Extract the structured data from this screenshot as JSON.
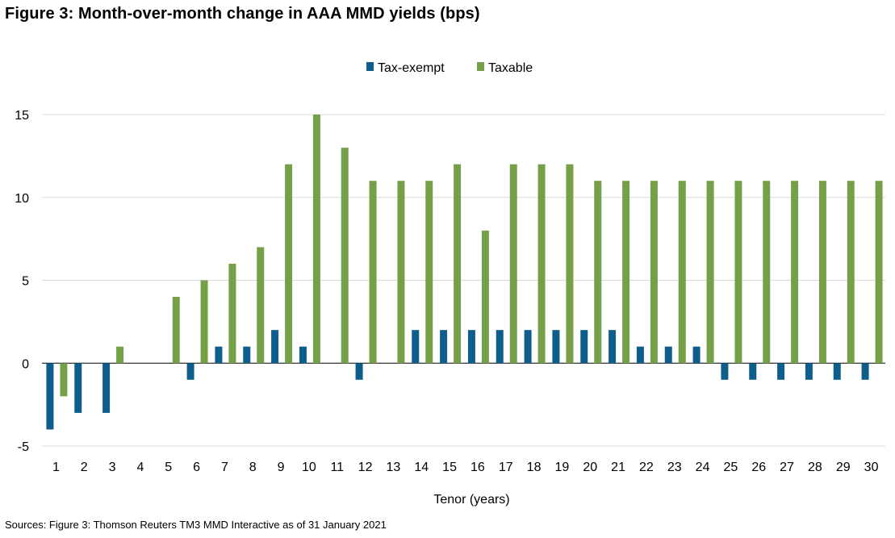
{
  "title": "Figure 3: Month-over-month change in AAA MMD yields (bps)",
  "source": "Sources: Figure 3: Thomson Reuters TM3 MMD Interactive as of 31 January 2021",
  "chart_data": {
    "type": "bar",
    "xlabel": "Tenor (years)",
    "ylabel": "",
    "ylim": [
      -5,
      15
    ],
    "yticks": [
      -5,
      0,
      5,
      10,
      15
    ],
    "grid": true,
    "legend_position": "top-center",
    "categories": [
      "1",
      "2",
      "3",
      "4",
      "5",
      "6",
      "7",
      "8",
      "9",
      "10",
      "11",
      "12",
      "13",
      "14",
      "15",
      "16",
      "17",
      "18",
      "19",
      "20",
      "21",
      "22",
      "23",
      "24",
      "25",
      "26",
      "27",
      "28",
      "29",
      "30"
    ],
    "series": [
      {
        "name": "Tax-exempt",
        "color": "#0E5E8C",
        "values": [
          -4,
          -3,
          -3,
          0,
          0,
          -1,
          1,
          1,
          2,
          1,
          0,
          -1,
          0,
          2,
          2,
          2,
          2,
          2,
          2,
          2,
          2,
          1,
          1,
          1,
          -1,
          -1,
          -1,
          -1,
          -1,
          -1
        ]
      },
      {
        "name": "Taxable",
        "color": "#76A048",
        "values": [
          -2,
          0,
          1,
          0,
          4,
          5,
          6,
          7,
          12,
          15,
          13,
          11,
          11,
          11,
          12,
          8,
          12,
          12,
          12,
          11,
          11,
          11,
          11,
          11,
          11,
          11,
          11,
          11,
          11,
          11
        ]
      }
    ]
  }
}
